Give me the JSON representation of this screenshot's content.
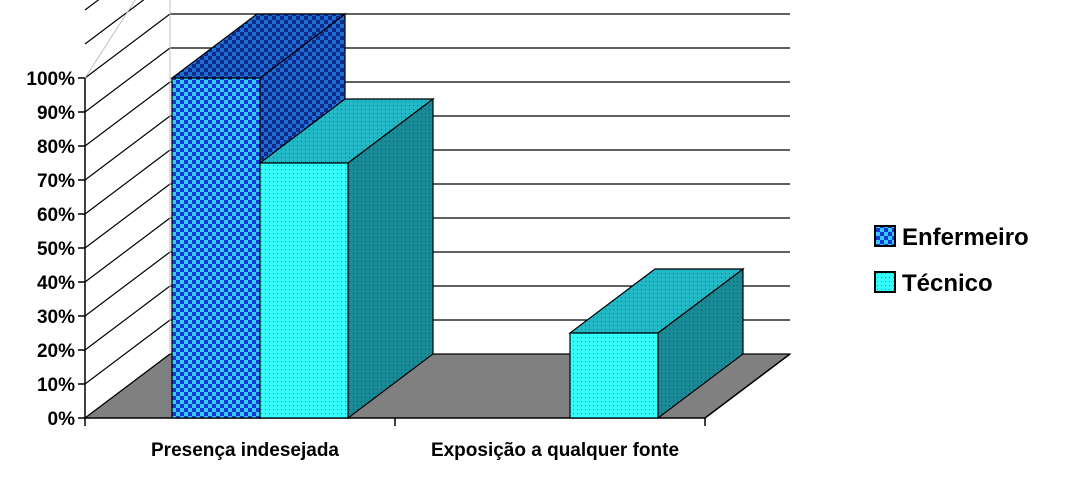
{
  "chart_data": {
    "type": "bar",
    "categories": [
      "Presença indesejada",
      "Exposição a qualquer fonte"
    ],
    "series": [
      {
        "name": "Enfermeiro",
        "values": [
          100,
          0
        ],
        "color": "#1f5cff"
      },
      {
        "name": "Técnico",
        "values": [
          75,
          25
        ],
        "color": "#33ffff"
      }
    ],
    "y_ticks": [
      "0%",
      "10%",
      "20%",
      "30%",
      "40%",
      "50%",
      "60%",
      "70%",
      "80%",
      "90%",
      "100%"
    ],
    "ylim": [
      0,
      100
    ],
    "grid": true,
    "legend_position": "right",
    "colors": {
      "floor": "#808080",
      "teal_side": "#1a8a96",
      "teal_top": "#1fb5c2",
      "blue_side": "#1a3f9e",
      "blue_top": "#2a58d8"
    }
  }
}
